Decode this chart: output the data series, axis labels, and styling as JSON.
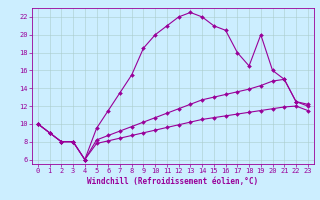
{
  "background_color": "#cceeff",
  "line_color": "#990099",
  "grid_color": "#aacccc",
  "line1_x": [
    0,
    1,
    2,
    3,
    4,
    5,
    6,
    7,
    8,
    9,
    10,
    11,
    12,
    13,
    14,
    15,
    16,
    17,
    18,
    19,
    20,
    21,
    22,
    23
  ],
  "line1_y": [
    10,
    9,
    8,
    8,
    6,
    9.5,
    11.5,
    13.5,
    15.5,
    18.5,
    20,
    21,
    22,
    22.5,
    22,
    21,
    20.5,
    18,
    16.5,
    20,
    16,
    15,
    12.5,
    12
  ],
  "line2_x": [
    0,
    1,
    2,
    3,
    4,
    5,
    6,
    7,
    8,
    9,
    10,
    11,
    12,
    13,
    14,
    15,
    16,
    17,
    18,
    19,
    20,
    21,
    22,
    23
  ],
  "line2_y": [
    10,
    9,
    8,
    8,
    6,
    8.2,
    8.7,
    9.2,
    9.7,
    10.2,
    10.7,
    11.2,
    11.7,
    12.2,
    12.7,
    13.0,
    13.3,
    13.6,
    13.9,
    14.3,
    14.8,
    15.0,
    12.5,
    12.2
  ],
  "line3_x": [
    0,
    1,
    2,
    3,
    4,
    5,
    6,
    7,
    8,
    9,
    10,
    11,
    12,
    13,
    14,
    15,
    16,
    17,
    18,
    19,
    20,
    21,
    22,
    23
  ],
  "line3_y": [
    10,
    9,
    8,
    8,
    6,
    7.8,
    8.1,
    8.4,
    8.7,
    9.0,
    9.3,
    9.6,
    9.9,
    10.2,
    10.5,
    10.7,
    10.9,
    11.1,
    11.3,
    11.5,
    11.7,
    11.9,
    12.0,
    11.5
  ],
  "ylim": [
    5.5,
    23.0
  ],
  "xlim": [
    -0.5,
    23.5
  ],
  "yticks": [
    6,
    8,
    10,
    12,
    14,
    16,
    18,
    20,
    22
  ],
  "xticks": [
    0,
    1,
    2,
    3,
    4,
    5,
    6,
    7,
    8,
    9,
    10,
    11,
    12,
    13,
    14,
    15,
    16,
    17,
    18,
    19,
    20,
    21,
    22,
    23
  ],
  "xlabel": "Windchill (Refroidissement éolien,°C)",
  "xlabel_fontsize": 5.5,
  "tick_fontsize": 5.0,
  "marker_size": 2.0,
  "line_width": 0.8
}
